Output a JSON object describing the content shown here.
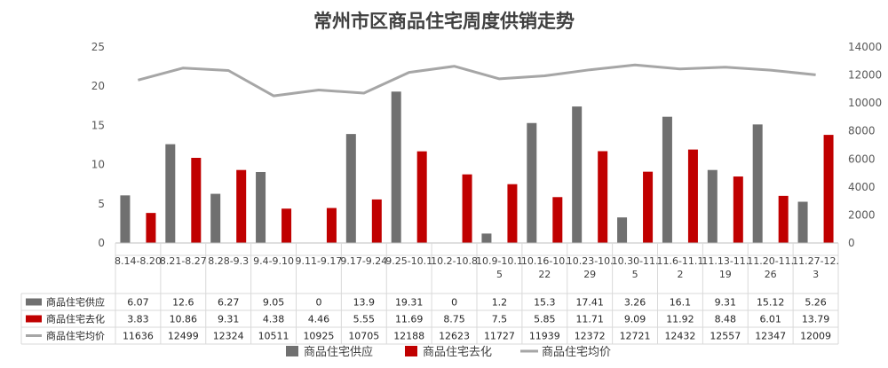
{
  "chart_data": {
    "type": "bar",
    "title": "常州市区商品住宅周度供销走势",
    "categories": [
      "8.14-8.20",
      "8.21-8.27",
      "8.28-9.3",
      "9.4-9.10",
      "9.11-9.17",
      "9.17-9.24",
      "9.25-10.1",
      "10.2-10.8",
      "10.9-10.15",
      "10.16-10.22",
      "10.23-10.29",
      "10.30-11.5",
      "11.6-11.12",
      "11.13-11.19",
      "11.20-11.26",
      "11.27-12.3"
    ],
    "category_label_lines": [
      [
        "8.14-8.20"
      ],
      [
        "8.21-8.27"
      ],
      [
        "8.28-9.3"
      ],
      [
        "9.4-9.10"
      ],
      [
        "9.11-9.17"
      ],
      [
        "9.17-9.24"
      ],
      [
        "9.25-10.1"
      ],
      [
        "10.2-10.8"
      ],
      [
        "10.9-10.1",
        "5"
      ],
      [
        "10.16-10.",
        "22"
      ],
      [
        "10.23-10.",
        "29"
      ],
      [
        "10.30-11.",
        "5"
      ],
      [
        "11.6-11.1",
        "2"
      ],
      [
        "11.13-11.",
        "19"
      ],
      [
        "11.20-11.",
        "26"
      ],
      [
        "11.27-12.",
        "3"
      ]
    ],
    "series": [
      {
        "name": "商品住宅供应",
        "type": "bar",
        "axis": "left",
        "color": "#707070",
        "values": [
          6.07,
          12.6,
          6.27,
          9.05,
          0,
          13.9,
          19.31,
          0,
          1.2,
          15.3,
          17.41,
          3.26,
          16.1,
          9.31,
          15.12,
          5.26
        ],
        "display": [
          "6.07",
          "12.6",
          "6.27",
          "9.05",
          "0",
          "13.9",
          "19.31",
          "0",
          "1.2",
          "15.3",
          "17.41",
          "3.26",
          "16.1",
          "9.31",
          "15.12",
          "5.26"
        ]
      },
      {
        "name": "商品住宅去化",
        "type": "bar",
        "axis": "left",
        "color": "#c00000",
        "values": [
          3.83,
          10.86,
          9.31,
          4.38,
          4.46,
          5.55,
          11.69,
          8.75,
          7.5,
          5.85,
          11.71,
          9.09,
          11.92,
          8.48,
          6.01,
          13.79
        ],
        "display": [
          "3.83",
          "10.86",
          "9.31",
          "4.38",
          "4.46",
          "5.55",
          "11.69",
          "8.75",
          "7.5",
          "5.85",
          "11.71",
          "9.09",
          "11.92",
          "8.48",
          "6.01",
          "13.79"
        ]
      },
      {
        "name": "商品住宅均价",
        "type": "line",
        "axis": "right",
        "color": "#a6a6a6",
        "values": [
          11636,
          12499,
          12324,
          10511,
          10925,
          10705,
          12188,
          12623,
          11727,
          11939,
          12372,
          12721,
          12432,
          12557,
          12347,
          12009
        ],
        "display": [
          "11636",
          "12499",
          "12324",
          "10511",
          "10925",
          "10705",
          "12188",
          "12623",
          "11727",
          "11939",
          "12372",
          "12721",
          "12432",
          "12557",
          "12347",
          "12009"
        ]
      }
    ],
    "y_left": {
      "min": 0,
      "max": 25,
      "ticks": [
        "0",
        "5",
        "10",
        "15",
        "20",
        "25"
      ]
    },
    "y_right": {
      "min": 0,
      "max": 14000,
      "ticks": [
        "0",
        "2000",
        "4000",
        "6000",
        "8000",
        "10000",
        "12000",
        "14000"
      ]
    },
    "data_table": true,
    "legend_position": "bottom"
  }
}
